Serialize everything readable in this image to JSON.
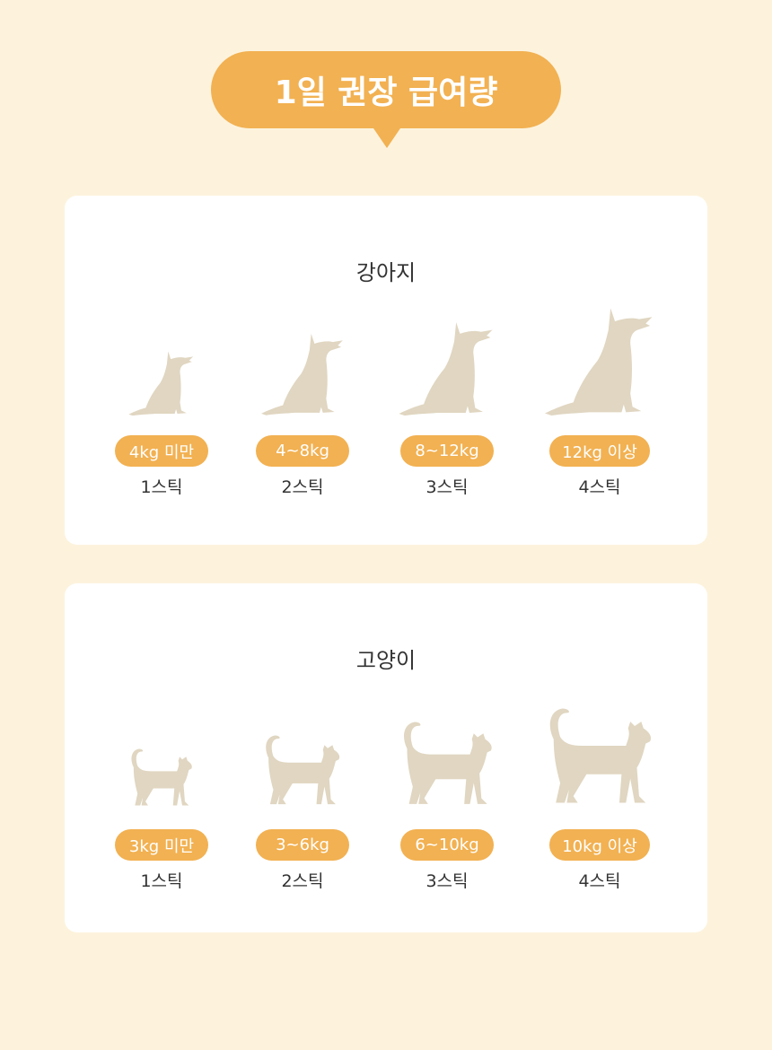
{
  "header": {
    "title": "1일 권장 급여량"
  },
  "colors": {
    "background": "#fdf3dd",
    "accent": "#f2b152",
    "silhouette": "#e0d6c1"
  },
  "dog": {
    "title": "강아지",
    "icon": "sitting-dog-icon",
    "items": [
      {
        "weight": "4kg 미만",
        "amount": "1스틱",
        "size": 0.6
      },
      {
        "weight": "4~8kg",
        "amount": "2스틱",
        "size": 0.76
      },
      {
        "weight": "8~12kg",
        "amount": "3스틱",
        "size": 0.87
      },
      {
        "weight": "12kg 이상",
        "amount": "4스틱",
        "size": 1
      }
    ]
  },
  "cat": {
    "title": "고양이",
    "icon": "standing-cat-icon",
    "items": [
      {
        "weight": "3kg 미만",
        "amount": "1스틱",
        "size": 0.6
      },
      {
        "weight": "3~6kg",
        "amount": "2스틱",
        "size": 0.73
      },
      {
        "weight": "6~10kg",
        "amount": "3스틱",
        "size": 0.87
      },
      {
        "weight": "10kg 이상",
        "amount": "4스틱",
        "size": 1
      }
    ]
  }
}
